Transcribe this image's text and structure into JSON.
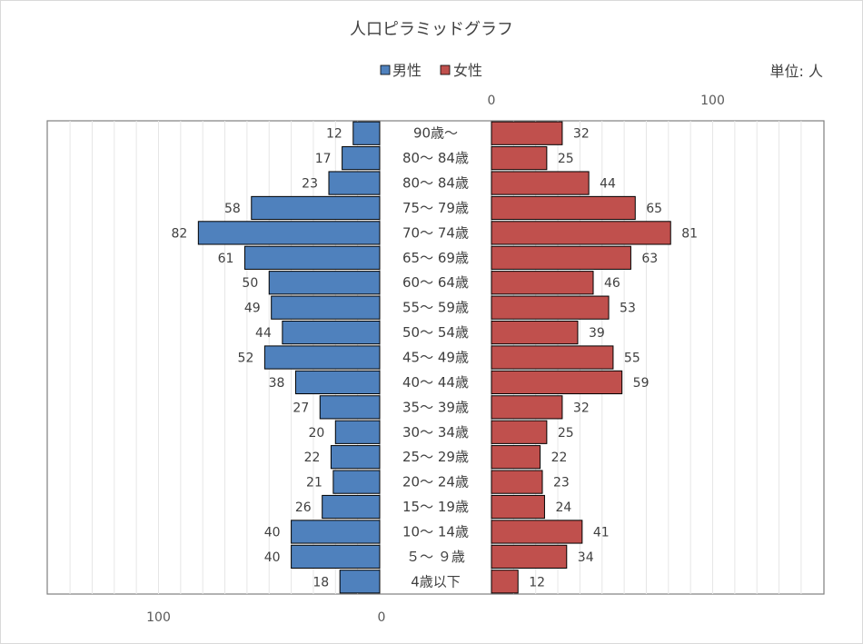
{
  "chart_data": {
    "type": "bar",
    "title": "人口ピラミッドグラフ",
    "unit_label": "単位: 人",
    "legend": [
      "男性",
      "女性"
    ],
    "legend_placement": "top-center",
    "categories": [
      "90歳〜",
      "80〜 84歳",
      "80〜 84歳",
      "75〜 79歳",
      "70〜 74歳",
      "65〜 69歳",
      "60〜 64歳",
      "55〜 59歳",
      "50〜 54歳",
      "45〜 49歳",
      "40〜 44歳",
      "35〜 39歳",
      "30〜 34歳",
      "25〜 29歳",
      "20〜 24歳",
      "15〜 19歳",
      "10〜 14歳",
      "５〜 ９歳",
      "4歳以下"
    ],
    "series": [
      {
        "name": "男性",
        "color": "#4f81bd",
        "values": [
          12,
          17,
          23,
          58,
          82,
          61,
          50,
          49,
          44,
          52,
          38,
          27,
          20,
          22,
          21,
          26,
          40,
          40,
          18
        ]
      },
      {
        "name": "女性",
        "color": "#c0504d",
        "values": [
          32,
          25,
          44,
          65,
          81,
          63,
          46,
          53,
          39,
          55,
          59,
          32,
          25,
          22,
          23,
          24,
          41,
          34,
          12
        ]
      }
    ],
    "male_axis": {
      "range": [
        0,
        150
      ],
      "direction": "reversed",
      "tick_labels": [
        "100",
        "0"
      ],
      "tick_values": [
        100,
        0
      ],
      "position": "bottom"
    },
    "female_axis": {
      "range": [
        0,
        150
      ],
      "tick_labels": [
        "0",
        "100"
      ],
      "tick_values": [
        0,
        100
      ],
      "position": "top"
    },
    "gridlines": true
  }
}
